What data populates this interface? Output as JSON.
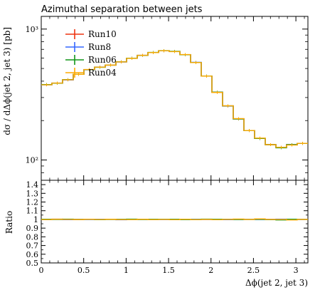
{
  "title": "Azimuthal separation between jets",
  "chart_data": {
    "type": "line",
    "title": "Azimuthal separation between jets",
    "xlabel": "Δϕ(jet 2, jet 3)",
    "ylabel": "dσ / dΔϕ(jet 2, jet 3) [pb]",
    "ratio_ylabel": "Ratio",
    "xlim": [
      0,
      3.14159
    ],
    "ylim": [
      70,
      1250
    ],
    "ylog": true,
    "ratio_ylim": [
      0.5,
      1.45
    ],
    "x_ticks": [
      0,
      0.5,
      1,
      1.5,
      2,
      2.5,
      3
    ],
    "x_tick_labels": [
      "0",
      "0.5",
      "1",
      "1.5",
      "2",
      "2.5",
      "3"
    ],
    "y_ticks": [
      100,
      1000
    ],
    "y_tick_labels": [
      "10²",
      "10³"
    ],
    "ratio_ticks": [
      0.5,
      0.6,
      0.7,
      0.8,
      0.9,
      1,
      1.1,
      1.2,
      1.3,
      1.4
    ],
    "ratio_tick_labels": [
      "0.5",
      "0.6",
      "0.7",
      "0.8",
      "0.9",
      "1",
      "1.1",
      "1.2",
      "1.3",
      "1.4"
    ],
    "legend_position": "top-left",
    "bin_edges": [
      0,
      0.1257,
      0.2513,
      0.377,
      0.5027,
      0.6283,
      0.754,
      0.8796,
      1.0053,
      1.131,
      1.2566,
      1.3823,
      1.508,
      1.6336,
      1.7593,
      1.885,
      2.0106,
      2.1363,
      2.2619,
      2.3876,
      2.5133,
      2.6389,
      2.7646,
      2.8903,
      3.0159,
      3.1416
    ],
    "series": [
      {
        "name": "Run10",
        "color": "#ee3311",
        "values": [
          376,
          386,
          410,
          452,
          490,
          512,
          530,
          562,
          598,
          630,
          662,
          683,
          675,
          638,
          556,
          437,
          329,
          259,
          206,
          168,
          146,
          131,
          125,
          131,
          134
        ],
        "ratio": [
          1.0,
          1.0,
          1.0,
          1.0,
          1.0,
          1.0,
          1.0,
          1.0,
          1.0,
          1.0,
          1.0,
          1.0,
          1.0,
          1.0,
          1.0,
          1.0,
          1.0,
          1.0,
          1.0,
          1.0,
          1.0,
          1.0,
          1.0,
          1.0,
          1.0
        ]
      },
      {
        "name": "Run8",
        "color": "#3366ff",
        "values": [
          375,
          387,
          409,
          451,
          489,
          513,
          531,
          560,
          598,
          631,
          662,
          682,
          674,
          638,
          557,
          437,
          329,
          258,
          206,
          168,
          146,
          131,
          125,
          131,
          134
        ],
        "ratio": [
          0.998,
          1.003,
          0.997,
          0.998,
          0.999,
          1.002,
          1.001,
          0.996,
          1.001,
          1.002,
          1.0,
          0.999,
          0.998,
          1.0,
          1.002,
          1.0,
          1.001,
          0.997,
          1.0,
          1.001,
          0.999,
          1.0,
          1.003,
          0.998,
          1.0
        ]
      },
      {
        "name": "Run06",
        "color": "#109618",
        "values": [
          377,
          386,
          411,
          452,
          490,
          511,
          530,
          562,
          599,
          630,
          663,
          684,
          676,
          637,
          556,
          438,
          330,
          259,
          206,
          168,
          146,
          131,
          124,
          131,
          134
        ],
        "ratio": [
          1.002,
          1.0,
          1.003,
          1.0,
          1.001,
          0.998,
          1.0,
          1.001,
          1.003,
          0.999,
          1.002,
          1.002,
          1.002,
          0.998,
          1.0,
          1.003,
          1.002,
          1.001,
          0.999,
          1.0,
          1.001,
          0.998,
          0.994,
          1.002,
          1.0
        ]
      },
      {
        "name": "Run04",
        "color": "#ffaa00",
        "values": [
          375,
          387,
          410,
          451,
          491,
          512,
          531,
          561,
          597,
          631,
          661,
          683,
          673,
          639,
          555,
          437,
          328,
          259,
          207,
          168,
          147,
          131,
          125,
          130,
          134
        ],
        "ratio": [
          0.998,
          1.003,
          1.0,
          0.998,
          1.002,
          1.0,
          1.002,
          0.998,
          0.998,
          1.002,
          0.998,
          1.0,
          0.997,
          1.002,
          0.998,
          1.0,
          0.997,
          1.0,
          1.004,
          1.0,
          1.006,
          1.0,
          1.0,
          0.994,
          1.0
        ]
      }
    ]
  }
}
